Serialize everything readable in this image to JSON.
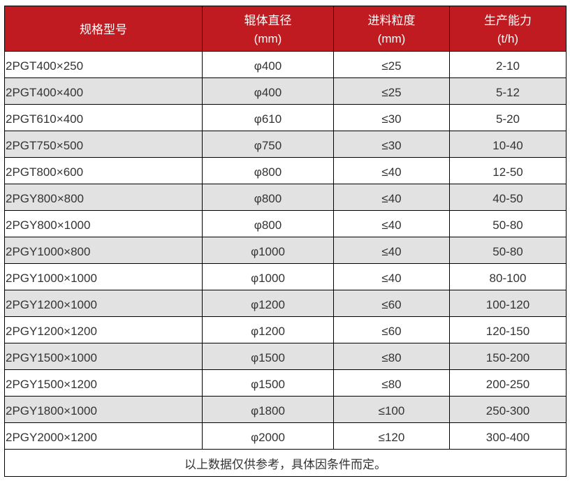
{
  "table": {
    "columns": [
      {
        "line1": "规格型号",
        "line2": ""
      },
      {
        "line1": "辊体直径",
        "line2": "(mm)"
      },
      {
        "line1": "进料粒度",
        "line2": "(mm)"
      },
      {
        "line1": "生产能力",
        "line2": "(t/h)"
      }
    ],
    "rows": [
      [
        "2PGT400×250",
        "φ400",
        "≤25",
        "2-10"
      ],
      [
        "2PGT400×400",
        "φ400",
        "≤25",
        "5-12"
      ],
      [
        "2PGT610×400",
        "φ610",
        "≤30",
        "5-20"
      ],
      [
        "2PGT750×500",
        "φ750",
        "≤30",
        "10-40"
      ],
      [
        "2PGT800×600",
        "φ800",
        "≤40",
        "12-50"
      ],
      [
        "2PGY800×800",
        "φ800",
        "≤40",
        "40-50"
      ],
      [
        "2PGY800×1000",
        "φ800",
        "≤40",
        "50-80"
      ],
      [
        "2PGY1000×800",
        "φ1000",
        "≤40",
        "50-80"
      ],
      [
        "2PGY1000×1000",
        "φ1000",
        "≤40",
        "80-100"
      ],
      [
        "2PGY1200×1000",
        "φ1200",
        "≤60",
        "100-120"
      ],
      [
        "2PGY1200×1200",
        "φ1200",
        "≤60",
        "120-150"
      ],
      [
        "2PGY1500×1000",
        "φ1500",
        "≤80",
        "150-200"
      ],
      [
        "2PGY1500×1200",
        "φ1500",
        "≤80",
        "200-250"
      ],
      [
        "2PGY1800×1000",
        "φ1800",
        "≤100",
        "250-300"
      ],
      [
        "2PGY2000×1200",
        "φ2000",
        "≤120",
        "300-400"
      ]
    ],
    "footnote": "以上数据仅供参考，具体因条件而定。"
  },
  "colors": {
    "header_bg": "#bf1b20",
    "header_text": "#ffffff",
    "row_alt_bg": "#e2e2e2",
    "row_bg": "#ffffff",
    "border": "#000000",
    "text": "#333333"
  },
  "chart_data": {
    "type": "table",
    "columns": [
      "规格型号",
      "辊体直径 (mm)",
      "进料粒度 (mm)",
      "生产能力 (t/h)"
    ],
    "rows": [
      [
        "2PGT400×250",
        "φ400",
        "≤25",
        "2-10"
      ],
      [
        "2PGT400×400",
        "φ400",
        "≤25",
        "5-12"
      ],
      [
        "2PGT610×400",
        "φ610",
        "≤30",
        "5-20"
      ],
      [
        "2PGT750×500",
        "φ750",
        "≤30",
        "10-40"
      ],
      [
        "2PGT800×600",
        "φ800",
        "≤40",
        "12-50"
      ],
      [
        "2PGY800×800",
        "φ800",
        "≤40",
        "40-50"
      ],
      [
        "2PGY800×1000",
        "φ800",
        "≤40",
        "50-80"
      ],
      [
        "2PGY1000×800",
        "φ1000",
        "≤40",
        "50-80"
      ],
      [
        "2PGY1000×1000",
        "φ1000",
        "≤40",
        "80-100"
      ],
      [
        "2PGY1200×1000",
        "φ1200",
        "≤60",
        "100-120"
      ],
      [
        "2PGY1200×1200",
        "φ1200",
        "≤60",
        "120-150"
      ],
      [
        "2PGY1500×1000",
        "φ1500",
        "≤80",
        "150-200"
      ],
      [
        "2PGY1500×1200",
        "φ1500",
        "≤80",
        "200-250"
      ],
      [
        "2PGY1800×1000",
        "φ1800",
        "≤100",
        "250-300"
      ],
      [
        "2PGY2000×1200",
        "φ2000",
        "≤120",
        "300-400"
      ]
    ],
    "footnote": "以上数据仅供参考，具体因条件而定。"
  }
}
